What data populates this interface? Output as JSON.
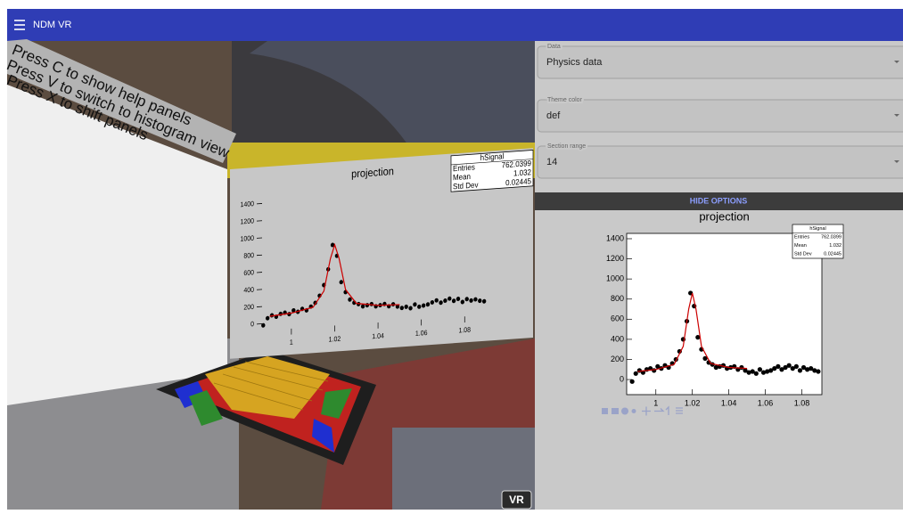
{
  "header": {
    "title": "NDM VR"
  },
  "vr_scene": {
    "help_lines": [
      "Press C to show help panels",
      "Press V to switch to histogram view",
      "Press X to shift panels"
    ],
    "vr_button": "VR"
  },
  "form": {
    "fields": [
      {
        "label": "Data",
        "value": "Physics data"
      },
      {
        "label": "Theme color",
        "value": "def"
      },
      {
        "label": "Section range",
        "value": "14"
      }
    ]
  },
  "options_button": "HIDE OPTIONS",
  "chart_data": {
    "type": "scatter",
    "title": "projection",
    "stats": {
      "name": "hSignal",
      "rows": [
        {
          "label": "Entries",
          "value": "762.0399"
        },
        {
          "label": "Mean",
          "value": "1.032"
        },
        {
          "label": "Std Dev",
          "value": "0.02445"
        }
      ]
    },
    "xlim": [
      0.984,
      1.091
    ],
    "ylim": [
      -150,
      1453
    ],
    "xticks": [
      1,
      1.02,
      1.04,
      1.06,
      1.08
    ],
    "yticks": [
      0,
      200,
      400,
      600,
      800,
      1000,
      1200,
      1400
    ],
    "points": {
      "color": "#000000",
      "x": [
        0.987,
        0.989,
        0.991,
        0.993,
        0.995,
        0.997,
        0.999,
        1.001,
        1.003,
        1.005,
        1.007,
        1.009,
        1.011,
        1.013,
        1.015,
        1.017,
        1.019,
        1.021,
        1.023,
        1.025,
        1.027,
        1.029,
        1.031,
        1.033,
        1.035,
        1.037,
        1.039,
        1.041,
        1.043,
        1.045,
        1.047,
        1.049,
        1.051,
        1.053,
        1.055,
        1.057,
        1.059,
        1.061,
        1.063,
        1.065,
        1.067,
        1.069,
        1.071,
        1.073,
        1.075,
        1.077,
        1.079,
        1.081,
        1.083,
        1.085,
        1.087,
        1.089
      ],
      "values": [
        -20,
        60,
        90,
        70,
        100,
        110,
        90,
        130,
        110,
        140,
        120,
        160,
        200,
        280,
        400,
        580,
        860,
        730,
        420,
        300,
        210,
        170,
        150,
        120,
        130,
        140,
        110,
        120,
        130,
        100,
        120,
        90,
        70,
        80,
        60,
        100,
        70,
        80,
        90,
        110,
        130,
        100,
        120,
        140,
        110,
        130,
        90,
        120,
        100,
        110,
        90,
        80
      ]
    },
    "fit": {
      "color": "#cc0000",
      "x": [
        0.99,
        1.0,
        1.01,
        1.015,
        1.018,
        1.02,
        1.022,
        1.025,
        1.03,
        1.04,
        1.05
      ],
      "values": [
        80,
        100,
        150,
        330,
        700,
        860,
        700,
        330,
        160,
        120,
        110
      ]
    }
  }
}
